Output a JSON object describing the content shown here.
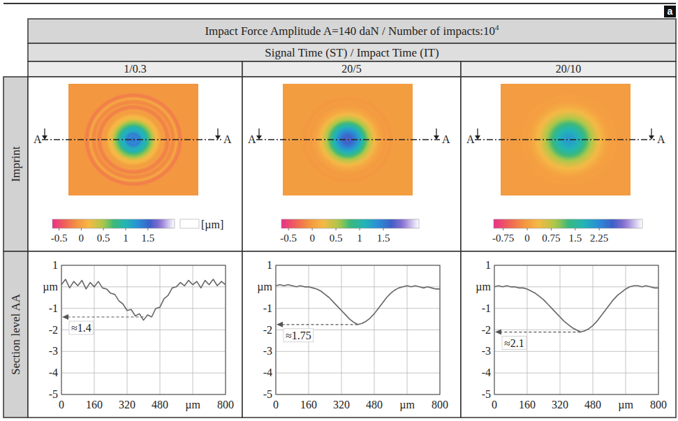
{
  "panel_letter": "a",
  "header": {
    "title": "Impact Force Amplitude A=140 daN / Number of impacts:10",
    "title_superscript": "4",
    "subtitle": "Signal Time (ST) / Impact Time (IT)"
  },
  "row_labels": [
    "Imprint",
    "Section level AA"
  ],
  "section_mark": "A",
  "columns": [
    {
      "label": "1/0.3",
      "colorbar": {
        "range": [
          -0.65,
          2.1
        ],
        "ticks": [
          -0.5,
          0,
          0.5,
          1,
          1.5
        ],
        "unit": "[µm]"
      }
    },
    {
      "label": "20/5",
      "colorbar": {
        "range": [
          -0.65,
          2.25
        ],
        "ticks": [
          -0.5,
          0,
          0.5,
          1,
          1.5
        ]
      }
    },
    {
      "label": "20/10",
      "colorbar": {
        "range": [
          -1.05,
          3.6
        ],
        "ticks": [
          -0.75,
          0,
          0.75,
          1.5,
          2.25
        ]
      }
    }
  ],
  "chart_data": [
    {
      "type": "line",
      "color": "#666666",
      "grid": true,
      "x": [
        0,
        20,
        40,
        60,
        80,
        100,
        120,
        140,
        160,
        180,
        200,
        220,
        240,
        260,
        280,
        300,
        320,
        340,
        360,
        380,
        400,
        420,
        440,
        460,
        480,
        500,
        520,
        540,
        560,
        580,
        600,
        620,
        640,
        660,
        680,
        700,
        720,
        740,
        760,
        780,
        800
      ],
      "values": [
        0.1,
        0.35,
        -0.05,
        0.25,
        0.05,
        0.3,
        -0.1,
        0.2,
        0.0,
        0.25,
        -0.05,
        -0.1,
        -0.3,
        -0.35,
        -0.65,
        -0.8,
        -1.1,
        -1.05,
        -1.35,
        -1.25,
        -1.55,
        -1.3,
        -1.4,
        -1.0,
        -0.95,
        -0.55,
        -0.4,
        -0.05,
        0.0,
        0.2,
        0.05,
        0.3,
        0.1,
        0.25,
        -0.05,
        0.3,
        0.1,
        0.35,
        0.05,
        0.25,
        0.1
      ],
      "xlim": [
        0,
        800
      ],
      "ylim": [
        -5,
        1
      ],
      "xticks": [
        0,
        160,
        320,
        480,
        {
          "value": 640,
          "label": "µm"
        },
        800
      ],
      "yticks": [
        -5,
        -4,
        -3,
        -2,
        -1,
        {
          "value": 0,
          "label": "µm"
        },
        1
      ],
      "annotations": [
        {
          "text": "≈1.4",
          "x": 400,
          "y": -1.4
        }
      ]
    },
    {
      "type": "line",
      "color": "#666666",
      "grid": true,
      "x": [
        0,
        20,
        40,
        60,
        80,
        100,
        120,
        140,
        160,
        180,
        200,
        220,
        240,
        260,
        280,
        300,
        320,
        340,
        360,
        380,
        400,
        420,
        440,
        460,
        480,
        500,
        520,
        540,
        560,
        580,
        600,
        620,
        640,
        660,
        680,
        700,
        720,
        740,
        760,
        780,
        800
      ],
      "values": [
        0.05,
        0.1,
        0.05,
        0.1,
        0.05,
        0.0,
        0.05,
        0.0,
        0.0,
        -0.05,
        -0.1,
        -0.2,
        -0.35,
        -0.5,
        -0.7,
        -0.9,
        -1.1,
        -1.3,
        -1.5,
        -1.65,
        -1.75,
        -1.7,
        -1.6,
        -1.45,
        -1.25,
        -1.0,
        -0.75,
        -0.5,
        -0.3,
        -0.15,
        -0.05,
        0.0,
        0.05,
        0.0,
        0.05,
        0.0,
        -0.05,
        0.0,
        -0.05,
        -0.1,
        -0.1
      ],
      "xlim": [
        0,
        800
      ],
      "ylim": [
        -5,
        1
      ],
      "xticks": [
        0,
        160,
        320,
        480,
        {
          "value": 640,
          "label": "µm"
        },
        800
      ],
      "yticks": [
        -5,
        -4,
        -3,
        -2,
        -1,
        {
          "value": 0,
          "label": "µm"
        },
        1
      ],
      "annotations": [
        {
          "text": "≈1.75",
          "x": 400,
          "y": -1.75
        }
      ]
    },
    {
      "type": "line",
      "color": "#666666",
      "grid": true,
      "x": [
        0,
        20,
        40,
        60,
        80,
        100,
        120,
        140,
        160,
        180,
        200,
        220,
        240,
        260,
        280,
        300,
        320,
        340,
        360,
        380,
        400,
        420,
        440,
        460,
        480,
        500,
        520,
        540,
        560,
        580,
        600,
        620,
        640,
        660,
        680,
        700,
        720,
        740,
        760,
        780,
        800
      ],
      "values": [
        0.0,
        0.05,
        0.0,
        0.05,
        0.0,
        0.0,
        -0.05,
        -0.05,
        -0.1,
        -0.2,
        -0.3,
        -0.45,
        -0.6,
        -0.8,
        -1.0,
        -1.2,
        -1.4,
        -1.6,
        -1.75,
        -1.9,
        -2.0,
        -2.1,
        -2.05,
        -1.95,
        -1.8,
        -1.6,
        -1.35,
        -1.1,
        -0.85,
        -0.6,
        -0.4,
        -0.25,
        -0.1,
        0.0,
        0.05,
        0.05,
        0.0,
        0.05,
        0.0,
        -0.05,
        -0.05
      ],
      "xlim": [
        0,
        800
      ],
      "ylim": [
        -5,
        1
      ],
      "xticks": [
        0,
        160,
        320,
        480,
        {
          "value": 640,
          "label": "µm"
        },
        800
      ],
      "yticks": [
        -5,
        -4,
        -3,
        -2,
        -1,
        {
          "value": 0,
          "label": "µm"
        },
        1
      ],
      "annotations": [
        {
          "text": "≈2.1",
          "x": 420,
          "y": -2.1
        }
      ]
    }
  ]
}
